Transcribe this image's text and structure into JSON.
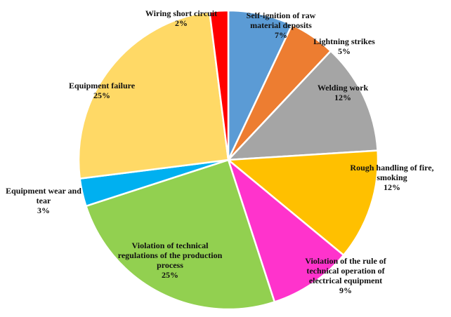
{
  "chart_data": {
    "type": "pie",
    "categories": [
      "Self-ignition of raw material deposits",
      "Lightning strikes",
      "Welding work",
      "Rough handling of fire, smoking",
      "Violation of the rule of technical operation of electrical equipment",
      "Violation of technical regulations of the production process",
      "Equipment wear and tear",
      "Equipment failure",
      "Wiring short circuit"
    ],
    "values": [
      7,
      5,
      12,
      12,
      9,
      25,
      3,
      25,
      2
    ],
    "value_labels": [
      "7%",
      "5%",
      "12%",
      "12%",
      "9%",
      "25%",
      "3%",
      "25%",
      "2%"
    ],
    "colors": [
      "#5b9bd5",
      "#ed7d31",
      "#a5a5a5",
      "#ffc000",
      "#ff33cc",
      "#92d050",
      "#00b0f0",
      "#ffd966",
      "#ff0000"
    ]
  }
}
